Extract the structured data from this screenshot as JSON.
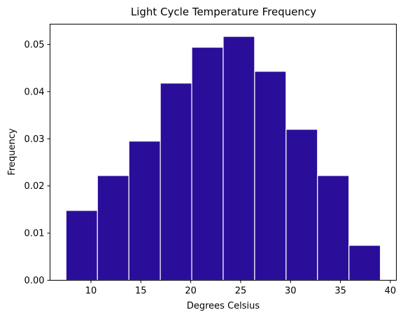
{
  "chart_data": {
    "type": "bar",
    "title": "Light Cycle Temperature Frequency",
    "xlabel": "Degrees Celsius",
    "ylabel": "Frequency",
    "bin_edges": [
      7.5,
      10.65,
      13.8,
      16.95,
      20.1,
      23.25,
      26.4,
      29.55,
      32.7,
      35.85,
      39.0
    ],
    "values": [
      0.0148,
      0.0222,
      0.0295,
      0.0418,
      0.0494,
      0.0517,
      0.0443,
      0.032,
      0.0222,
      0.0074
    ],
    "xlim": [
      5.9,
      40.6
    ],
    "ylim": [
      0,
      0.0543
    ],
    "xticks": [
      10,
      15,
      20,
      25,
      30,
      35,
      40
    ],
    "xtick_labels": [
      "10",
      "15",
      "20",
      "25",
      "30",
      "35",
      "40"
    ],
    "yticks": [
      0,
      0.01,
      0.02,
      0.03,
      0.04,
      0.05
    ],
    "ytick_labels": [
      "0.00",
      "0.01",
      "0.02",
      "0.03",
      "0.04",
      "0.05"
    ],
    "bar_color": "#2a0e9a",
    "edge_color": "#ffffff",
    "grid": false,
    "legend": "none"
  }
}
